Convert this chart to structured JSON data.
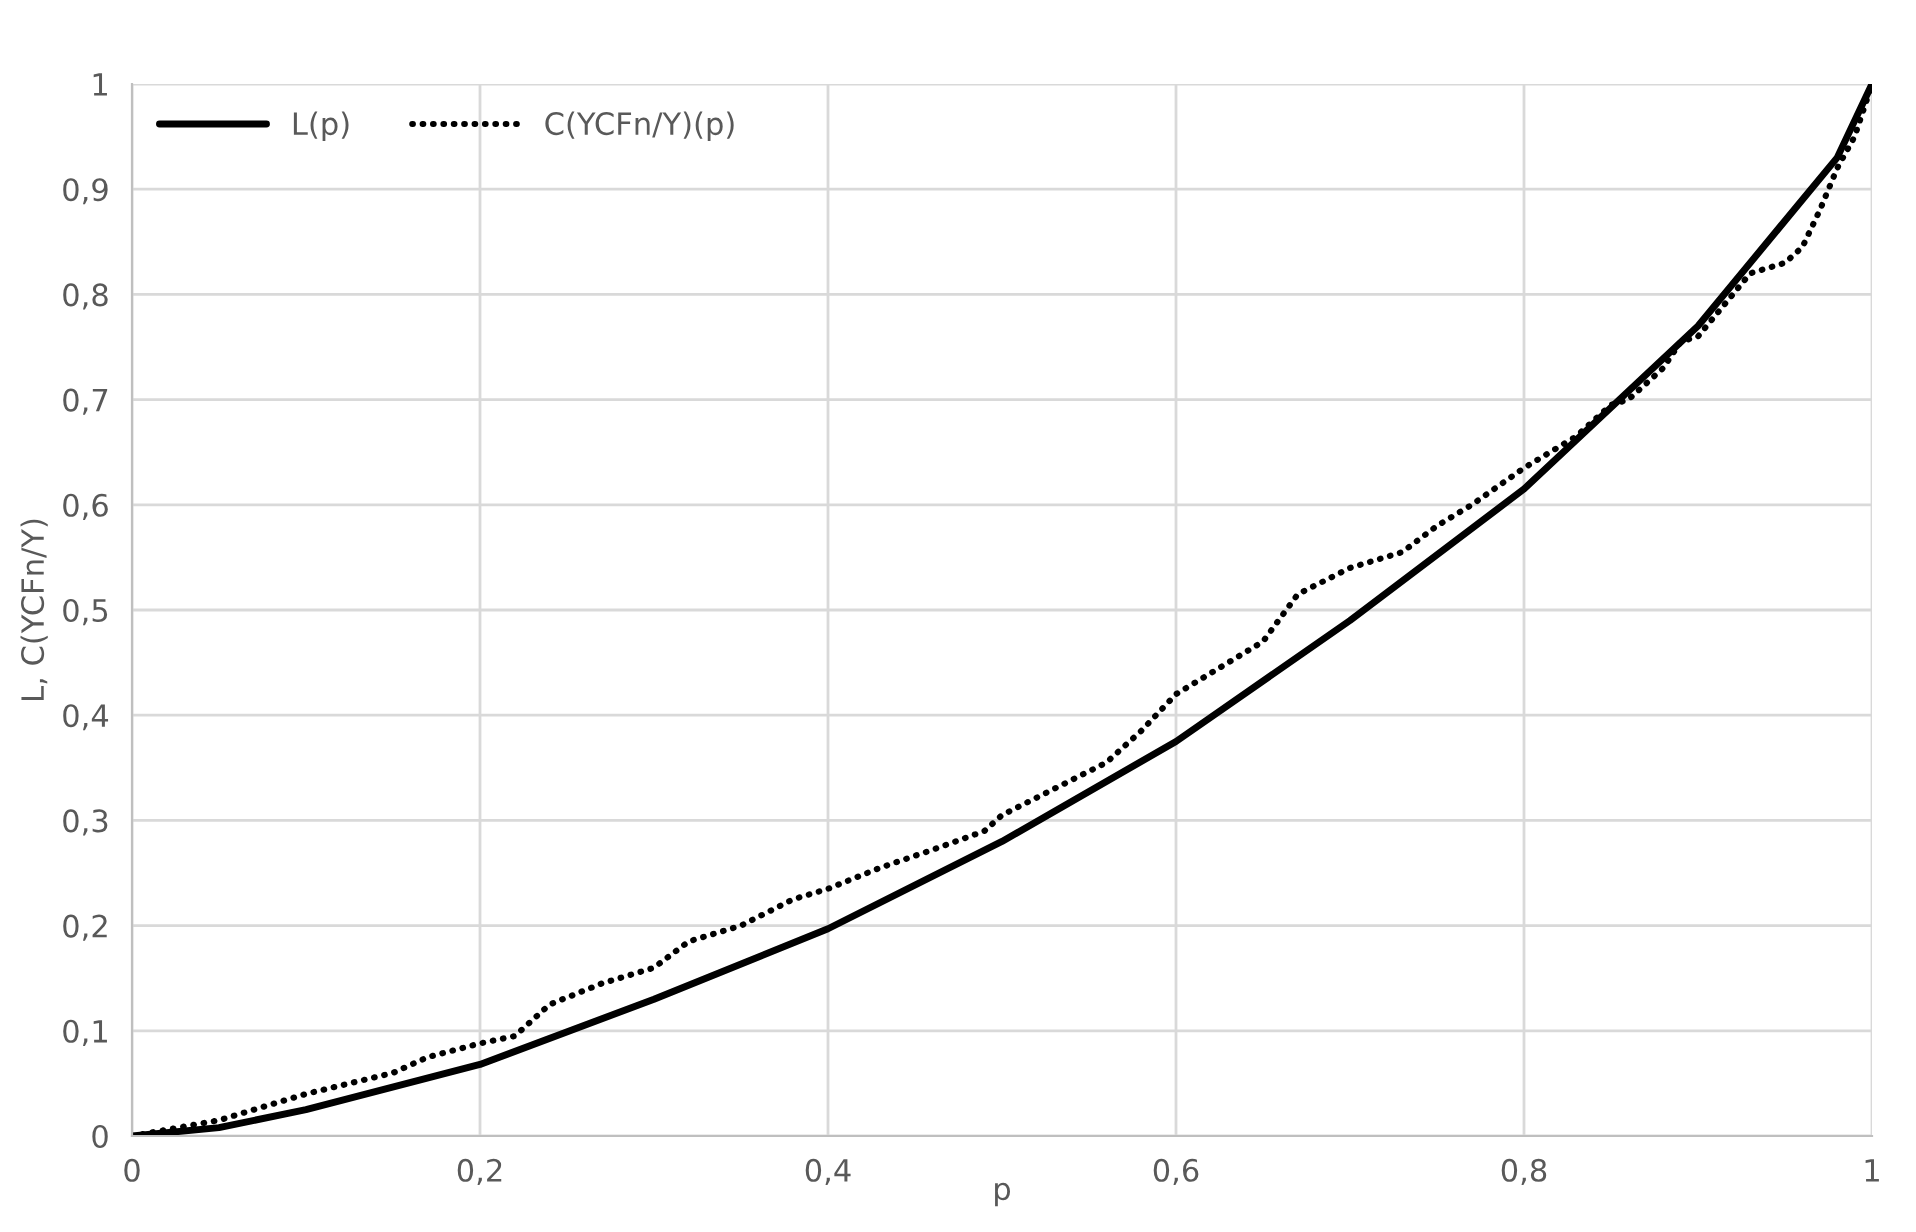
{
  "chart_data": {
    "type": "line",
    "xlabel": "p",
    "ylabel": "L, C(YCFn/Y)",
    "xlim": [
      0,
      1
    ],
    "ylim": [
      0,
      1
    ],
    "xticks": [
      0,
      {
        "value": 0.2,
        "label": "0,2"
      },
      {
        "value": 0.4,
        "label": "0,4"
      },
      {
        "value": 0.6,
        "label": "0,6"
      },
      {
        "value": 0.8,
        "label": "0,8"
      },
      1
    ],
    "yticks": [
      0,
      {
        "value": 0.1,
        "label": "0,1"
      },
      {
        "value": 0.2,
        "label": "0,2"
      },
      {
        "value": 0.3,
        "label": "0,3"
      },
      {
        "value": 0.4,
        "label": "0,4"
      },
      {
        "value": 0.5,
        "label": "0,5"
      },
      {
        "value": 0.6,
        "label": "0,6"
      },
      {
        "value": 0.7,
        "label": "0,7"
      },
      {
        "value": 0.8,
        "label": "0,8"
      },
      {
        "value": 0.9,
        "label": "0,9"
      },
      1
    ],
    "grid": true,
    "legend": "top left",
    "marker": "none",
    "series": [
      {
        "name": "L(p)",
        "color": "#000000",
        "line_style": "solid",
        "x": [
          0,
          0.05,
          0.1,
          0.2,
          0.3,
          0.4,
          0.5,
          0.6,
          0.7,
          0.8,
          0.9,
          0.95,
          0.98,
          1
        ],
        "values": [
          0,
          0.008,
          0.025,
          0.068,
          0.13,
          0.197,
          0.28,
          0.375,
          0.49,
          0.615,
          0.77,
          0.87,
          0.93,
          1
        ]
      },
      {
        "name": "C(YCFn/Y)(p)",
        "color": "#000000",
        "line_style": "dotted",
        "x": [
          0,
          0.05,
          0.1,
          0.15,
          0.17,
          0.2,
          0.22,
          0.24,
          0.27,
          0.3,
          0.32,
          0.35,
          0.38,
          0.4,
          0.43,
          0.46,
          0.49,
          0.5,
          0.53,
          0.56,
          0.58,
          0.6,
          0.62,
          0.65,
          0.67,
          0.7,
          0.73,
          0.75,
          0.77,
          0.8,
          0.83,
          0.85,
          0.86,
          0.88,
          0.89,
          0.9,
          0.92,
          0.93,
          0.95,
          0.96,
          0.97,
          0.98,
          0.99,
          1
        ],
        "values": [
          0,
          0.015,
          0.04,
          0.06,
          0.075,
          0.088,
          0.095,
          0.125,
          0.145,
          0.16,
          0.185,
          0.2,
          0.225,
          0.235,
          0.255,
          0.272,
          0.29,
          0.305,
          0.33,
          0.355,
          0.385,
          0.42,
          0.44,
          0.47,
          0.515,
          0.54,
          0.555,
          0.58,
          0.6,
          0.635,
          0.665,
          0.695,
          0.7,
          0.73,
          0.755,
          0.76,
          0.8,
          0.82,
          0.83,
          0.845,
          0.88,
          0.92,
          0.95,
          1
        ]
      }
    ]
  }
}
